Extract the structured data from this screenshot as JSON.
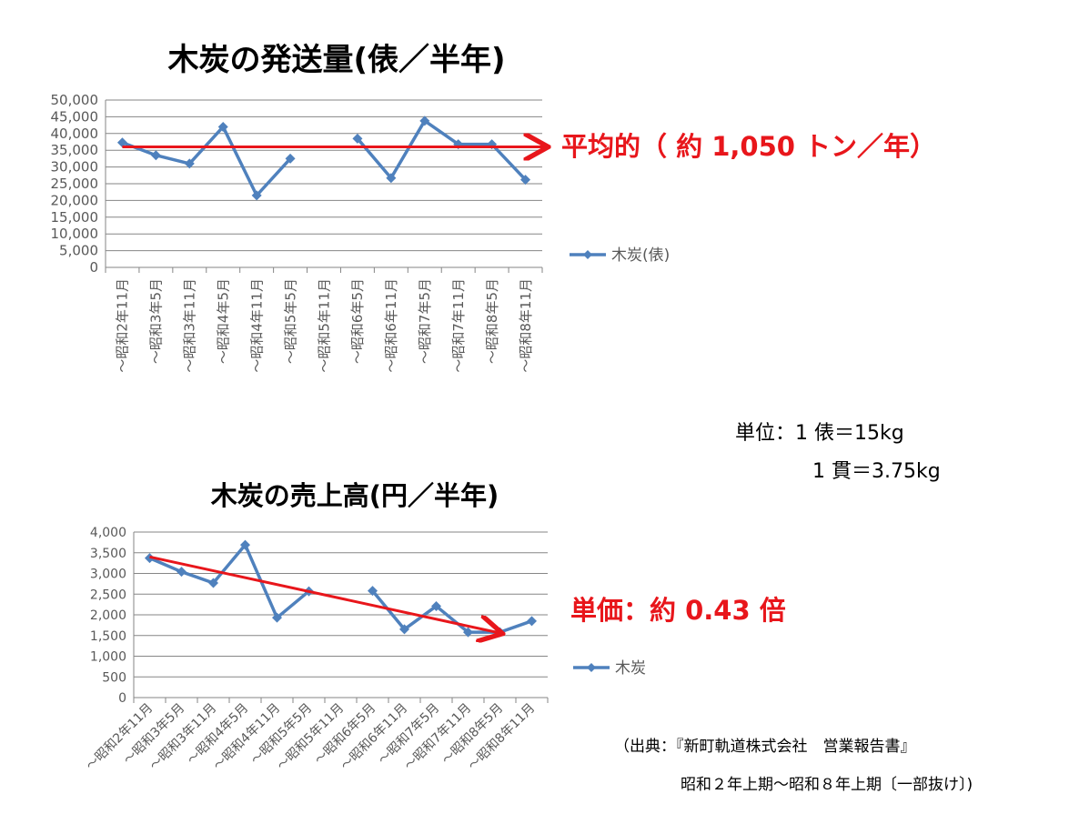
{
  "chart_data": [
    {
      "type": "line",
      "title": "木炭の発送量(俵／半年)",
      "categories": [
        "～昭和2年11月",
        "～昭和3年5月",
        "～昭和3年11月",
        "～昭和4年5月",
        "～昭和4年11月",
        "～昭和5年5月",
        "～昭和5年11月",
        "～昭和6年5月",
        "～昭和6年11月",
        "～昭和7年5月",
        "～昭和7年11月",
        "～昭和8年5月",
        "～昭和8年11月"
      ],
      "series": [
        {
          "name": "木炭(俵)",
          "color": "#4f81bd",
          "values": [
            37300,
            33500,
            31000,
            42000,
            21500,
            32500,
            null,
            38500,
            26700,
            43800,
            36800,
            36800,
            26200
          ]
        }
      ],
      "ylim": [
        0,
        50000
      ],
      "yticks": [
        "50,000",
        "45,000",
        "40,000",
        "35,000",
        "30,000",
        "25,000",
        "20,000",
        "15,000",
        "10,000",
        "5,000",
        "0"
      ],
      "grid": true,
      "legend": "right",
      "trend_arrow": {
        "from": [
          0,
          36000
        ],
        "to": [
          12.6,
          36000
        ],
        "color": "#e8161b"
      },
      "annotation": "平均的（ 約 1,050 トン／年）"
    },
    {
      "type": "line",
      "title": "木炭の売上高(円／半年)",
      "categories": [
        "～昭和2年11月",
        "～昭和3年5月",
        "～昭和3年11月",
        "～昭和4年5月",
        "～昭和4年11月",
        "～昭和5年5月",
        "～昭和5年11月",
        "～昭和6年5月",
        "～昭和6年11月",
        "～昭和7年5月",
        "～昭和7年11月",
        "～昭和8年5月",
        "～昭和8年11月"
      ],
      "series": [
        {
          "name": "木炭",
          "color": "#4f81bd",
          "values": [
            3370,
            3040,
            2770,
            3690,
            1930,
            2570,
            null,
            2580,
            1650,
            2210,
            1580,
            1580,
            1850
          ]
        }
      ],
      "ylim": [
        0,
        4000
      ],
      "yticks": [
        "4,000",
        "3,500",
        "3,000",
        "2,500",
        "2,000",
        "1,500",
        "1,000",
        "500",
        "0"
      ],
      "grid": true,
      "legend": "right",
      "trend_arrow": {
        "from": [
          0,
          3400
        ],
        "to": [
          11,
          1560
        ],
        "color": "#e8161b"
      },
      "annotation": "単価：約 0.43 倍"
    }
  ],
  "units": {
    "line1": "単位：1 俵＝15kg",
    "line2": "1 貫＝3.75kg"
  },
  "source": {
    "line1": "（出典：『新町軌道株式会社　営業報告書』",
    "line2": "昭和２年上期～昭和８年上期〔一部抜け〕)"
  }
}
